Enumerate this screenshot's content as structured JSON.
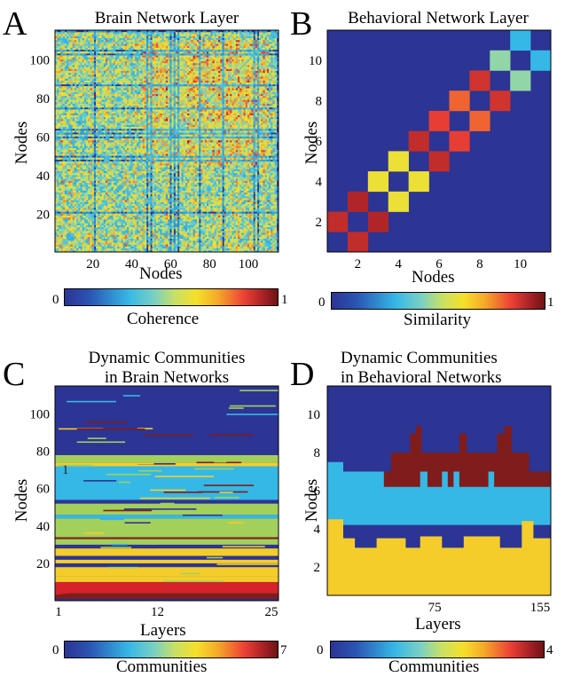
{
  "panels": {
    "A": {
      "letter": "A",
      "title": "Brain Network Layer",
      "xlabel": "Nodes",
      "ylabel": "Nodes"
    },
    "B": {
      "letter": "B",
      "title": "Behavioral Network Layer",
      "xlabel": "Nodes",
      "ylabel": "Nodes"
    },
    "C": {
      "letter": "C",
      "title_line1": "Dynamic Communities",
      "title_line2": "in Brain Networks",
      "xlabel": "Layers",
      "ylabel": "Nodes",
      "annotation": "1"
    },
    "D": {
      "letter": "D",
      "title_line1": "Dynamic Communities",
      "title_line2": "in Behavioral Networks",
      "xlabel": "Layers",
      "ylabel": "Nodes"
    }
  },
  "colorbars": {
    "A": {
      "min": "0",
      "max": "1",
      "label": "Coherence"
    },
    "B": {
      "min": "0",
      "max": "1",
      "label": "Similarity"
    },
    "C": {
      "min": "0",
      "max": "7",
      "label": "Communities"
    },
    "D": {
      "min": "0",
      "max": "4",
      "label": "Communities"
    }
  },
  "colors": {
    "c0": "#2c3494",
    "c1": "#35b8e6",
    "c2": "#a3d05b",
    "c3": "#f5cd2a",
    "c4": "#ee4236",
    "c5": "#d4232a",
    "c6": "#7e1d1c",
    "c7": "#6b1414"
  },
  "chart_data": [
    {
      "type": "heatmap",
      "title": "Brain Network Layer",
      "xlabel": "Nodes",
      "ylabel": "Nodes",
      "x_ticks": [
        20,
        40,
        60,
        80,
        100
      ],
      "y_ticks": [
        20,
        40,
        60,
        80,
        100
      ],
      "xlim": [
        1,
        115
      ],
      "ylim": [
        1,
        115
      ],
      "colorbar": {
        "label": "Coherence",
        "range": [
          0,
          1
        ]
      }
    },
    {
      "type": "heatmap",
      "title": "Behavioral Network Layer",
      "xlabel": "Nodes",
      "ylabel": "Nodes",
      "x_ticks": [
        2,
        4,
        6,
        8,
        10
      ],
      "y_ticks": [
        2,
        4,
        6,
        8,
        10
      ],
      "xlim": [
        1,
        11
      ],
      "ylim": [
        1,
        11
      ],
      "cells": [
        {
          "i": 1,
          "j": 2,
          "value": 0.9
        },
        {
          "i": 2,
          "j": 1,
          "value": 0.9
        },
        {
          "i": 2,
          "j": 3,
          "value": 0.92
        },
        {
          "i": 3,
          "j": 2,
          "value": 0.92
        },
        {
          "i": 3,
          "j": 4,
          "value": 0.6
        },
        {
          "i": 4,
          "j": 3,
          "value": 0.6
        },
        {
          "i": 4,
          "j": 5,
          "value": 0.6
        },
        {
          "i": 5,
          "j": 4,
          "value": 0.6
        },
        {
          "i": 5,
          "j": 6,
          "value": 0.9
        },
        {
          "i": 6,
          "j": 5,
          "value": 0.9
        },
        {
          "i": 6,
          "j": 7,
          "value": 0.85
        },
        {
          "i": 7,
          "j": 6,
          "value": 0.85
        },
        {
          "i": 7,
          "j": 8,
          "value": 0.8
        },
        {
          "i": 8,
          "j": 7,
          "value": 0.8
        },
        {
          "i": 8,
          "j": 9,
          "value": 0.88
        },
        {
          "i": 9,
          "j": 8,
          "value": 0.88
        },
        {
          "i": 9,
          "j": 10,
          "value": 0.45
        },
        {
          "i": 10,
          "j": 9,
          "value": 0.45
        },
        {
          "i": 10,
          "j": 11,
          "value": 0.3
        },
        {
          "i": 11,
          "j": 10,
          "value": 0.3
        }
      ],
      "colorbar": {
        "label": "Similarity",
        "range": [
          0,
          1
        ]
      }
    },
    {
      "type": "heatmap",
      "title": "Dynamic Communities in Brain Networks",
      "xlabel": "Layers",
      "ylabel": "Nodes",
      "x_ticks": [
        1,
        12,
        25
      ],
      "y_ticks": [
        20,
        40,
        60,
        80,
        100
      ],
      "xlim": [
        1,
        25
      ],
      "ylim": [
        1,
        115
      ],
      "bands": [
        {
          "from": 1,
          "to": 4,
          "community": 6
        },
        {
          "from": 4,
          "to": 10,
          "community": 5
        },
        {
          "from": 10,
          "to": 13,
          "community": 3
        },
        {
          "from": 13,
          "to": 18,
          "community": 3
        },
        {
          "from": 18,
          "to": 20,
          "community": 0
        },
        {
          "from": 20,
          "to": 22,
          "community": 3
        },
        {
          "from": 22,
          "to": 24,
          "community": 0
        },
        {
          "from": 24,
          "to": 28,
          "community": 3
        },
        {
          "from": 28,
          "to": 30,
          "community": 0
        },
        {
          "from": 30,
          "to": 33,
          "community": 2
        },
        {
          "from": 33,
          "to": 34,
          "community": 6
        },
        {
          "from": 34,
          "to": 44,
          "community": 2
        },
        {
          "from": 44,
          "to": 46,
          "community": 1
        },
        {
          "from": 46,
          "to": 52,
          "community": 2
        },
        {
          "from": 52,
          "to": 54,
          "community": 0
        },
        {
          "from": 54,
          "to": 72,
          "community": 1
        },
        {
          "from": 72,
          "to": 74,
          "community": 3
        },
        {
          "from": 74,
          "to": 78,
          "community": 2
        },
        {
          "from": 78,
          "to": 82,
          "community": 0
        },
        {
          "from": 82,
          "to": 115,
          "community": 0
        }
      ],
      "colorbar": {
        "label": "Communities",
        "range": [
          0,
          7
        ]
      }
    },
    {
      "type": "heatmap",
      "title": "Dynamic Communities in Behavioral Networks",
      "xlabel": "Layers",
      "ylabel": "Nodes",
      "x_ticks": [
        75,
        155
      ],
      "y_ticks": [
        2,
        4,
        6,
        8,
        10
      ],
      "xlim": [
        1,
        155
      ],
      "ylim": [
        1,
        11.5
      ],
      "bands": [
        {
          "from": 1,
          "to": 3.8,
          "community": 3
        },
        {
          "from": 3.8,
          "to": 7,
          "community": 1
        },
        {
          "from": 6,
          "to": 9,
          "community": 6
        },
        {
          "from": 7,
          "to": 11.5,
          "community": 0
        }
      ],
      "colorbar": {
        "label": "Communities",
        "range": [
          0,
          4
        ]
      }
    }
  ]
}
